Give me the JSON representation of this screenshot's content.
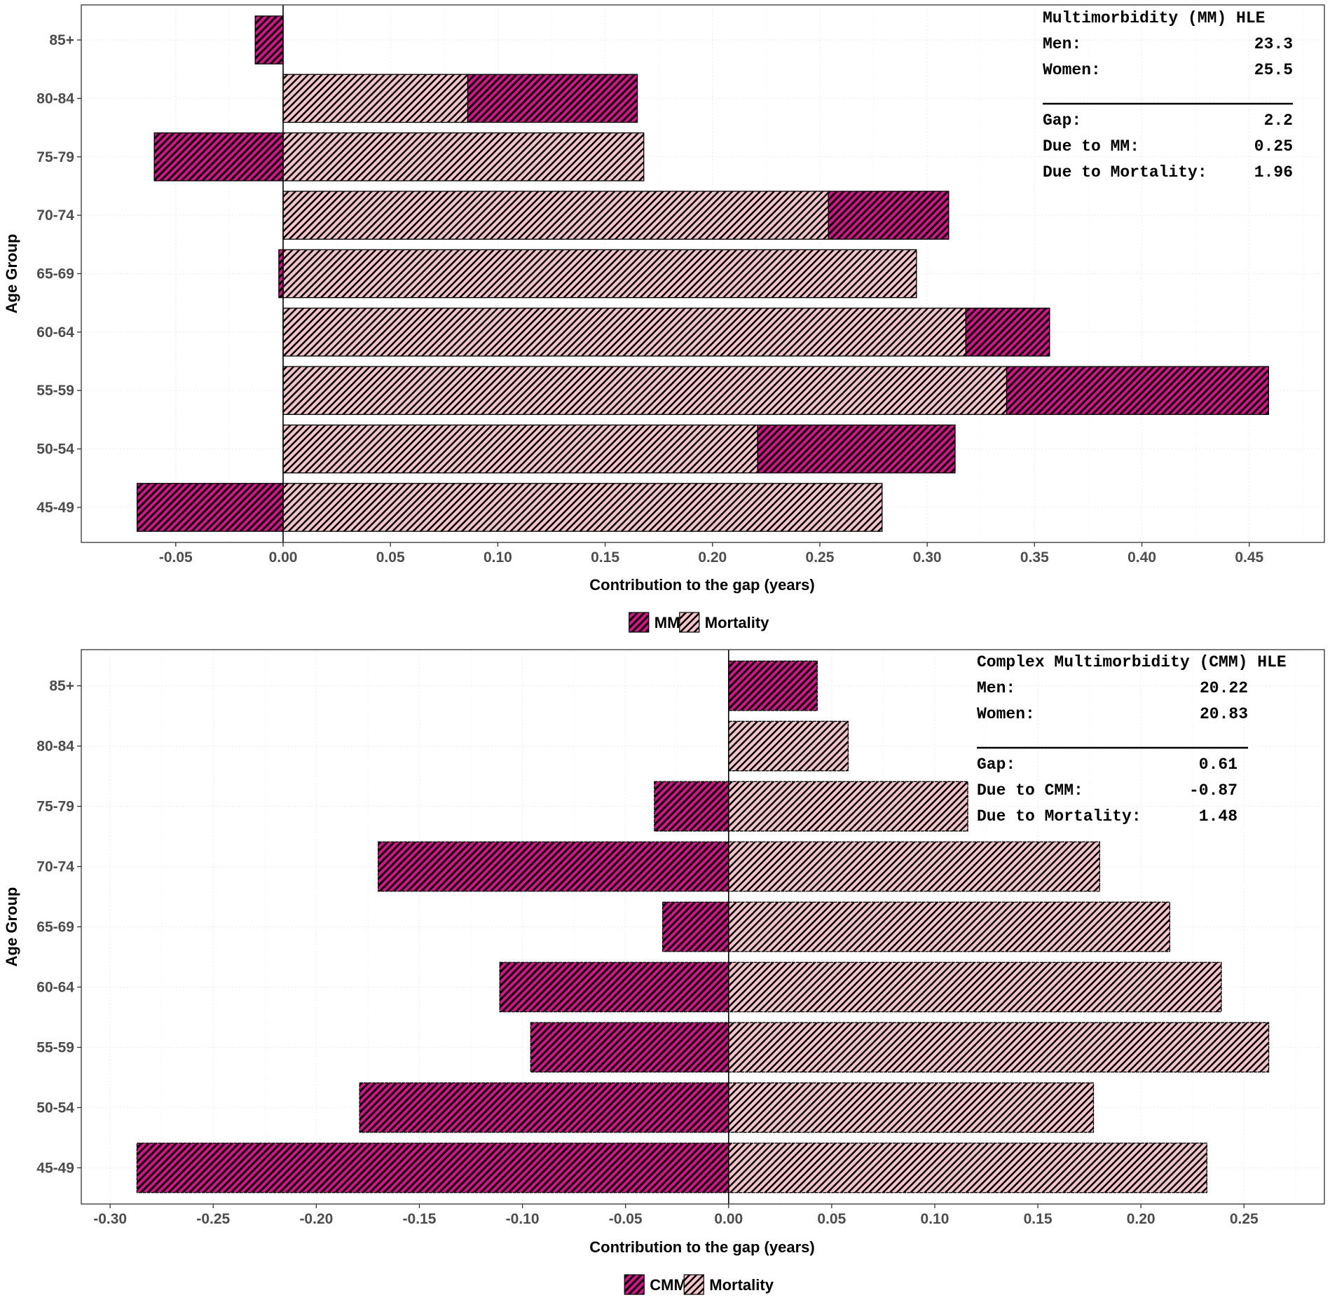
{
  "colors": {
    "mm": "#d4148a",
    "mortality": "#f5c3ca",
    "hatch": "#000000",
    "grid": "#ebebeb"
  },
  "chart_data": [
    {
      "type": "bar",
      "orientation": "horizontal-stacked",
      "ylabel": "Age Group",
      "xlabel": "Contribution to the gap (years)",
      "categories": [
        "85+",
        "80-84",
        "75-79",
        "70-74",
        "65-69",
        "60-64",
        "55-59",
        "50-54",
        "45-49"
      ],
      "series": [
        {
          "name": "MM",
          "key": "mm",
          "values": [
            -0.013,
            0.079,
            -0.06,
            0.056,
            -0.002,
            0.039,
            0.122,
            0.092,
            -0.068
          ]
        },
        {
          "name": "Mortality",
          "key": "mortality",
          "values": [
            0,
            0.086,
            0.168,
            0.254,
            0.295,
            0.318,
            0.337,
            0.221,
            0.279
          ]
        }
      ],
      "xlim": [
        -0.094,
        0.485
      ],
      "xticks": [
        "-0.05",
        "0.00",
        "0.05",
        "0.10",
        "0.15",
        "0.20",
        "0.25",
        "0.30",
        "0.35",
        "0.40",
        "0.45"
      ],
      "legend": {
        "position": "bottom",
        "entries": [
          "MM",
          "Mortality"
        ]
      },
      "annotation": {
        "title": "Multimorbidity (MM) HLE",
        "rows_top": [
          [
            "Men:",
            "23.3"
          ],
          [
            "Women:",
            "25.5"
          ]
        ],
        "rows_bottom": [
          [
            "Gap:",
            "2.2"
          ],
          [
            "Due to MM:",
            "0.25"
          ],
          [
            "Due to Mortality:",
            "1.96"
          ]
        ]
      }
    },
    {
      "type": "bar",
      "orientation": "horizontal-stacked",
      "ylabel": "Age Group",
      "xlabel": "Contribution to the gap (years)",
      "categories": [
        "85+",
        "80-84",
        "75-79",
        "70-74",
        "65-69",
        "60-64",
        "55-59",
        "50-54",
        "45-49"
      ],
      "series": [
        {
          "name": "CMM",
          "key": "mm",
          "values": [
            0.043,
            0,
            -0.036,
            -0.17,
            -0.032,
            -0.111,
            -0.096,
            -0.179,
            -0.287
          ]
        },
        {
          "name": "Mortality",
          "key": "mortality",
          "values": [
            0,
            0.058,
            0.116,
            0.18,
            0.214,
            0.239,
            0.262,
            0.177,
            0.232
          ]
        }
      ],
      "xlim": [
        -0.314,
        0.289
      ],
      "xticks": [
        "-0.30",
        "-0.25",
        "-0.20",
        "-0.15",
        "-0.10",
        "-0.05",
        "0.00",
        "0.05",
        "0.10",
        "0.15",
        "0.20",
        "0.25"
      ],
      "legend": {
        "position": "bottom",
        "entries": [
          "CMM",
          "Mortality"
        ]
      },
      "annotation": {
        "title": "Complex Multimorbidity (CMM) HLE",
        "rows_top": [
          [
            "Men:",
            "20.22"
          ],
          [
            "Women:",
            "20.83"
          ]
        ],
        "rows_bottom": [
          [
            "Gap:",
            "0.61"
          ],
          [
            "Due to CMM:",
            "-0.87"
          ],
          [
            "Due to Mortality:",
            "1.48"
          ]
        ]
      }
    }
  ]
}
